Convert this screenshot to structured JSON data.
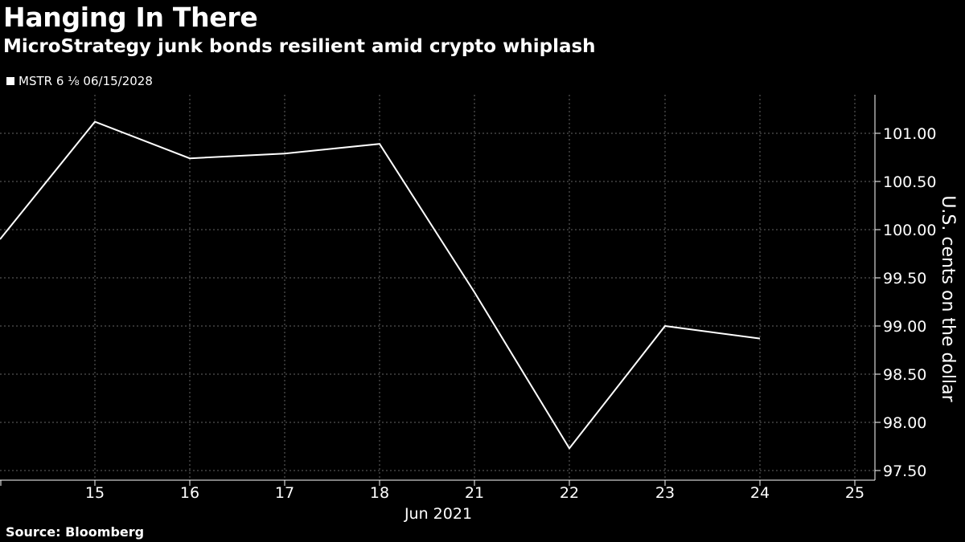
{
  "header": {
    "title": "Hanging In There",
    "subtitle": "MicroStrategy junk bonds resilient amid crypto whiplash"
  },
  "legend": {
    "label": "MSTR 6 ⅛ 06/15/2028"
  },
  "footer": {
    "source": "Source: Bloomberg"
  },
  "colors": {
    "background": "#000000",
    "line": "#ffffff",
    "grid": "#666666"
  },
  "chart_data": {
    "type": "line",
    "title": "Hanging In There",
    "subtitle": "MicroStrategy junk bonds resilient amid crypto whiplash",
    "xlabel": "Jun 2021",
    "ylabel": "U.S. cents on the dollar",
    "x_ticks": [
      "15",
      "16",
      "17",
      "18",
      "21",
      "22",
      "23",
      "24",
      "25"
    ],
    "y_ticks": [
      "97.50",
      "98.00",
      "98.50",
      "99.00",
      "99.50",
      "100.00",
      "100.50",
      "101.00"
    ],
    "ylim": [
      97.4,
      101.4
    ],
    "grid": true,
    "legend_position": "top-left",
    "series": [
      {
        "name": "MSTR 6 ⅛ 06/15/2028",
        "x": [
          "14",
          "15",
          "16",
          "17",
          "18",
          "21",
          "22",
          "23",
          "24"
        ],
        "values": [
          99.9,
          101.12,
          100.74,
          100.79,
          100.89,
          99.35,
          97.73,
          99.0,
          98.87
        ]
      }
    ]
  }
}
